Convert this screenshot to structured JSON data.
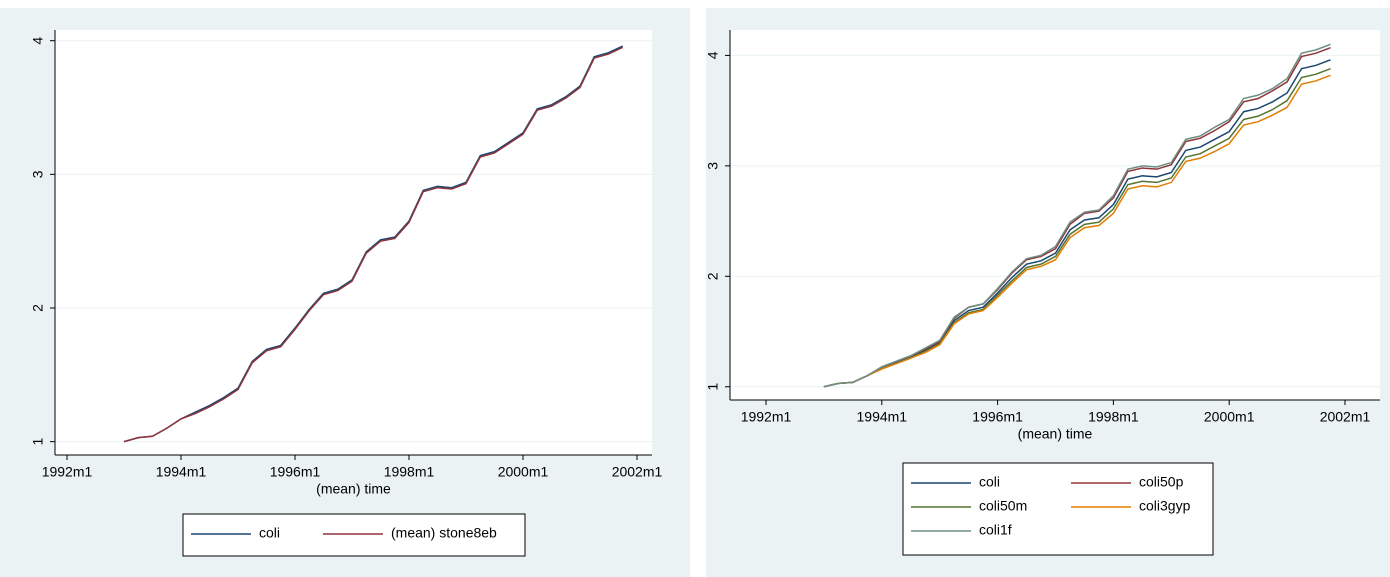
{
  "chart_data": [
    {
      "type": "line",
      "xlabel": "(mean) time",
      "x": [
        "1993m1",
        "1993m4",
        "1993m7",
        "1993m10",
        "1994m1",
        "1994m4",
        "1994m7",
        "1994m10",
        "1995m1",
        "1995m4",
        "1995m7",
        "1995m10",
        "1996m1",
        "1996m4",
        "1996m7",
        "1996m10",
        "1997m1",
        "1997m4",
        "1997m7",
        "1997m10",
        "1998m1",
        "1998m4",
        "1998m7",
        "1998m10",
        "1999m1",
        "1999m4",
        "1999m7",
        "1999m10",
        "2000m1",
        "2000m4",
        "2000m7",
        "2000m10",
        "2001m1",
        "2001m4",
        "2001m7",
        "2001m10"
      ],
      "xlim": [
        "1992m1",
        "2002m1"
      ],
      "xticks": [
        "1992m1",
        "1994m1",
        "1996m1",
        "1998m1",
        "2000m1",
        "2002m1"
      ],
      "ylim": [
        0.9,
        4.08
      ],
      "yticks": [
        1,
        2,
        3,
        4
      ],
      "grid": true,
      "series": [
        {
          "name": "coli",
          "color": "#1a476f",
          "values": [
            1.0,
            1.03,
            1.04,
            1.1,
            1.17,
            1.22,
            1.27,
            1.33,
            1.4,
            1.6,
            1.69,
            1.72,
            1.85,
            1.99,
            2.11,
            2.14,
            2.21,
            2.42,
            2.51,
            2.53,
            2.65,
            2.88,
            2.91,
            2.9,
            2.94,
            3.14,
            3.17,
            3.24,
            3.31,
            3.49,
            3.52,
            3.58,
            3.66,
            3.88,
            3.91,
            3.96
          ]
        },
        {
          "name": "(mean) stone8eb",
          "color": "#90353b",
          "values": [
            1.0,
            1.03,
            1.04,
            1.1,
            1.17,
            1.21,
            1.26,
            1.32,
            1.39,
            1.59,
            1.68,
            1.71,
            1.84,
            1.98,
            2.1,
            2.13,
            2.2,
            2.41,
            2.5,
            2.52,
            2.64,
            2.87,
            2.9,
            2.89,
            2.93,
            3.13,
            3.16,
            3.23,
            3.3,
            3.48,
            3.51,
            3.57,
            3.65,
            3.87,
            3.9,
            3.95
          ]
        }
      ]
    },
    {
      "type": "line",
      "xlabel": "(mean) time",
      "x": [
        "1993m1",
        "1993m4",
        "1993m7",
        "1993m10",
        "1994m1",
        "1994m4",
        "1994m7",
        "1994m10",
        "1995m1",
        "1995m4",
        "1995m7",
        "1995m10",
        "1996m1",
        "1996m4",
        "1996m7",
        "1996m10",
        "1997m1",
        "1997m4",
        "1997m7",
        "1997m10",
        "1998m1",
        "1998m4",
        "1998m7",
        "1998m10",
        "1999m1",
        "1999m4",
        "1999m7",
        "1999m10",
        "2000m1",
        "2000m4",
        "2000m7",
        "2000m10",
        "2001m1",
        "2001m4",
        "2001m7",
        "2001m10"
      ],
      "xlim": [
        "1992m1",
        "2002m1"
      ],
      "xticks": [
        "1992m1",
        "1994m1",
        "1996m1",
        "1998m1",
        "2000m1",
        "2002m1"
      ],
      "ylim": [
        0.88,
        4.23
      ],
      "yticks": [
        1,
        2,
        3,
        4
      ],
      "grid": true,
      "series": [
        {
          "name": "coli",
          "color": "#1a476f",
          "values": [
            1.0,
            1.03,
            1.04,
            1.1,
            1.17,
            1.22,
            1.27,
            1.33,
            1.4,
            1.6,
            1.69,
            1.72,
            1.85,
            1.99,
            2.11,
            2.14,
            2.21,
            2.42,
            2.51,
            2.53,
            2.65,
            2.88,
            2.91,
            2.9,
            2.94,
            3.14,
            3.17,
            3.24,
            3.31,
            3.49,
            3.52,
            3.58,
            3.66,
            3.88,
            3.91,
            3.96
          ]
        },
        {
          "name": "coli50p",
          "color": "#90353b",
          "values": [
            1.0,
            1.03,
            1.04,
            1.1,
            1.18,
            1.23,
            1.28,
            1.34,
            1.41,
            1.62,
            1.72,
            1.75,
            1.88,
            2.03,
            2.15,
            2.18,
            2.25,
            2.47,
            2.57,
            2.59,
            2.71,
            2.95,
            2.98,
            2.97,
            3.01,
            3.22,
            3.25,
            3.32,
            3.4,
            3.58,
            3.61,
            3.68,
            3.76,
            3.99,
            4.02,
            4.07
          ]
        },
        {
          "name": "coli50m",
          "color": "#55752f",
          "values": [
            1.0,
            1.03,
            1.04,
            1.1,
            1.17,
            1.21,
            1.26,
            1.32,
            1.39,
            1.58,
            1.67,
            1.7,
            1.83,
            1.96,
            2.08,
            2.11,
            2.18,
            2.38,
            2.47,
            2.49,
            2.61,
            2.83,
            2.86,
            2.85,
            2.89,
            3.08,
            3.11,
            3.18,
            3.25,
            3.42,
            3.45,
            3.51,
            3.59,
            3.8,
            3.83,
            3.88
          ]
        },
        {
          "name": "coli3gyp",
          "color": "#e37e00",
          "values": [
            1.0,
            1.03,
            1.04,
            1.1,
            1.16,
            1.21,
            1.26,
            1.31,
            1.38,
            1.57,
            1.66,
            1.69,
            1.81,
            1.94,
            2.06,
            2.09,
            2.15,
            2.35,
            2.44,
            2.46,
            2.57,
            2.79,
            2.82,
            2.81,
            2.85,
            3.04,
            3.07,
            3.13,
            3.2,
            3.37,
            3.4,
            3.46,
            3.53,
            3.74,
            3.77,
            3.82
          ]
        },
        {
          "name": "coli1f",
          "color": "#6e8e84",
          "values": [
            1.0,
            1.03,
            1.04,
            1.1,
            1.18,
            1.23,
            1.28,
            1.35,
            1.42,
            1.63,
            1.72,
            1.75,
            1.89,
            2.04,
            2.16,
            2.19,
            2.27,
            2.49,
            2.58,
            2.6,
            2.73,
            2.97,
            3.0,
            2.99,
            3.03,
            3.24,
            3.27,
            3.35,
            3.42,
            3.61,
            3.64,
            3.7,
            3.79,
            4.02,
            4.05,
            4.1
          ]
        }
      ]
    }
  ]
}
